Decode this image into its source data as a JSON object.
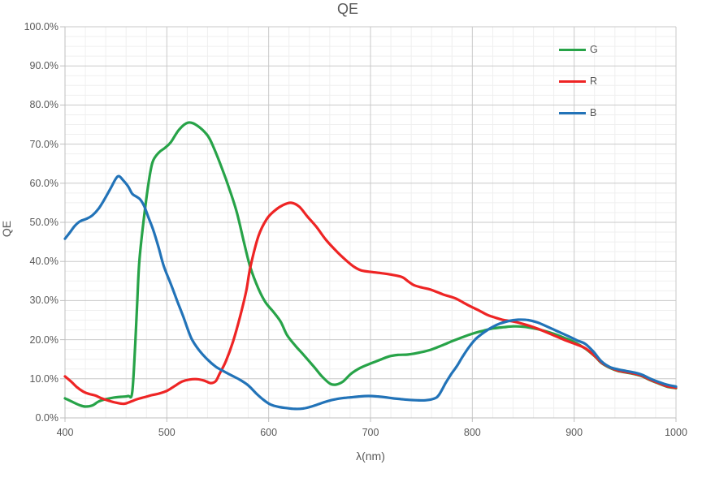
{
  "title": "QE",
  "palette": {
    "grid_major": "#c9c9c9",
    "grid_minor": "#efefef",
    "axis_line": "#bfbfbf",
    "text": "#595959"
  },
  "chart_data": {
    "type": "line",
    "title": "QE",
    "xlabel": "λ(nm)",
    "ylabel": "QE",
    "xlim": [
      400,
      1000
    ],
    "ylim": [
      0,
      100
    ],
    "x_major_step": 100,
    "x_minor_step": 20,
    "y_major_step": 10,
    "y_minor_step": 2.5,
    "y_unit": "percent",
    "grid": "major and minor, both axes",
    "legend_position": "inside top-right",
    "x_tick_labels": [
      "400",
      "500",
      "600",
      "700",
      "800",
      "900",
      "1000"
    ],
    "y_tick_labels": [
      "100.0%",
      "90.0%",
      "80.0%",
      "70.0%",
      "60.0%",
      "50.0%",
      "40.0%",
      "30.0%",
      "20.0%",
      "10.0%",
      "0.0%"
    ],
    "series": [
      {
        "name": "G",
        "color": "#27a348",
        "points": [
          [
            400,
            5.0
          ],
          [
            408,
            4.0
          ],
          [
            415,
            3.2
          ],
          [
            420,
            2.9
          ],
          [
            427,
            3.2
          ],
          [
            433,
            4.2
          ],
          [
            440,
            4.8
          ],
          [
            448,
            5.2
          ],
          [
            455,
            5.4
          ],
          [
            462,
            5.6
          ],
          [
            466,
            6.5
          ],
          [
            469,
            19.0
          ],
          [
            471,
            30.0
          ],
          [
            473,
            40.0
          ],
          [
            477,
            50.0
          ],
          [
            482,
            60.0
          ],
          [
            486,
            65.4
          ],
          [
            492,
            67.8
          ],
          [
            498,
            69.0
          ],
          [
            504,
            70.5
          ],
          [
            512,
            73.7
          ],
          [
            521,
            75.5
          ],
          [
            530,
            74.7
          ],
          [
            540,
            72.2
          ],
          [
            546,
            69.1
          ],
          [
            554,
            63.9
          ],
          [
            562,
            58.1
          ],
          [
            569,
            52.3
          ],
          [
            576,
            44.6
          ],
          [
            582,
            38.5
          ],
          [
            590,
            33.0
          ],
          [
            597,
            29.5
          ],
          [
            605,
            27.0
          ],
          [
            612,
            24.5
          ],
          [
            618,
            21.2
          ],
          [
            626,
            18.5
          ],
          [
            634,
            16.2
          ],
          [
            645,
            12.9
          ],
          [
            652,
            10.7
          ],
          [
            660,
            8.8
          ],
          [
            666,
            8.5
          ],
          [
            673,
            9.3
          ],
          [
            681,
            11.3
          ],
          [
            690,
            12.8
          ],
          [
            699,
            13.8
          ],
          [
            708,
            14.7
          ],
          [
            718,
            15.7
          ],
          [
            727,
            16.1
          ],
          [
            737,
            16.2
          ],
          [
            748,
            16.7
          ],
          [
            759,
            17.4
          ],
          [
            770,
            18.5
          ],
          [
            780,
            19.6
          ],
          [
            791,
            20.7
          ],
          [
            801,
            21.6
          ],
          [
            811,
            22.3
          ],
          [
            821,
            22.9
          ],
          [
            831,
            23.2
          ],
          [
            840,
            23.4
          ],
          [
            850,
            23.3
          ],
          [
            860,
            22.9
          ],
          [
            870,
            22.3
          ],
          [
            880,
            21.5
          ],
          [
            890,
            20.5
          ],
          [
            900,
            19.4
          ],
          [
            911,
            17.7
          ],
          [
            920,
            15.8
          ],
          [
            927,
            14.0
          ],
          [
            935,
            12.8
          ],
          [
            943,
            12.0
          ],
          [
            951,
            11.6
          ],
          [
            959,
            11.2
          ],
          [
            967,
            10.6
          ],
          [
            975,
            9.6
          ],
          [
            983,
            8.8
          ],
          [
            991,
            8.0
          ],
          [
            1000,
            7.6
          ]
        ]
      },
      {
        "name": "R",
        "color": "#ee2424",
        "points": [
          [
            400,
            10.6
          ],
          [
            406,
            9.3
          ],
          [
            412,
            7.8
          ],
          [
            418,
            6.7
          ],
          [
            424,
            6.1
          ],
          [
            430,
            5.7
          ],
          [
            436,
            5.0
          ],
          [
            443,
            4.4
          ],
          [
            450,
            3.9
          ],
          [
            458,
            3.6
          ],
          [
            464,
            4.1
          ],
          [
            471,
            4.8
          ],
          [
            478,
            5.3
          ],
          [
            485,
            5.8
          ],
          [
            492,
            6.2
          ],
          [
            500,
            6.9
          ],
          [
            508,
            8.2
          ],
          [
            515,
            9.3
          ],
          [
            522,
            9.8
          ],
          [
            530,
            9.9
          ],
          [
            537,
            9.5
          ],
          [
            543,
            8.9
          ],
          [
            548,
            9.4
          ],
          [
            552,
            11.4
          ],
          [
            558,
            14.5
          ],
          [
            565,
            19.5
          ],
          [
            572,
            26.0
          ],
          [
            578,
            32.5
          ],
          [
            582,
            38.5
          ],
          [
            590,
            46.5
          ],
          [
            598,
            50.8
          ],
          [
            606,
            53.0
          ],
          [
            614,
            54.4
          ],
          [
            622,
            55.0
          ],
          [
            630,
            54.0
          ],
          [
            638,
            51.5
          ],
          [
            647,
            48.8
          ],
          [
            656,
            45.6
          ],
          [
            667,
            42.5
          ],
          [
            676,
            40.3
          ],
          [
            684,
            38.6
          ],
          [
            691,
            37.7
          ],
          [
            701,
            37.3
          ],
          [
            711,
            37.0
          ],
          [
            721,
            36.6
          ],
          [
            731,
            36.0
          ],
          [
            737,
            34.9
          ],
          [
            743,
            33.9
          ],
          [
            751,
            33.3
          ],
          [
            759,
            32.8
          ],
          [
            771,
            31.6
          ],
          [
            783,
            30.6
          ],
          [
            791,
            29.5
          ],
          [
            799,
            28.4
          ],
          [
            807,
            27.4
          ],
          [
            815,
            26.3
          ],
          [
            823,
            25.6
          ],
          [
            831,
            25.0
          ],
          [
            841,
            24.6
          ],
          [
            850,
            24.0
          ],
          [
            860,
            23.2
          ],
          [
            870,
            22.2
          ],
          [
            880,
            21.1
          ],
          [
            890,
            20.0
          ],
          [
            900,
            19.0
          ],
          [
            911,
            17.8
          ],
          [
            920,
            15.9
          ],
          [
            927,
            14.1
          ],
          [
            935,
            12.9
          ],
          [
            943,
            12.1
          ],
          [
            951,
            11.7
          ],
          [
            959,
            11.3
          ],
          [
            967,
            10.7
          ],
          [
            975,
            9.7
          ],
          [
            983,
            8.9
          ],
          [
            991,
            8.1
          ],
          [
            1000,
            7.7
          ]
        ]
      },
      {
        "name": "B",
        "color": "#2273b8",
        "points": [
          [
            400,
            45.8
          ],
          [
            405,
            47.5
          ],
          [
            410,
            49.2
          ],
          [
            415,
            50.3
          ],
          [
            421,
            50.9
          ],
          [
            427,
            51.8
          ],
          [
            433,
            53.5
          ],
          [
            439,
            56.0
          ],
          [
            445,
            58.8
          ],
          [
            450,
            61.2
          ],
          [
            453,
            61.8
          ],
          [
            457,
            60.8
          ],
          [
            462,
            59.2
          ],
          [
            466,
            57.3
          ],
          [
            470,
            56.6
          ],
          [
            474,
            55.8
          ],
          [
            478,
            54.0
          ],
          [
            482,
            51.2
          ],
          [
            487,
            47.8
          ],
          [
            492,
            43.5
          ],
          [
            497,
            38.8
          ],
          [
            504,
            34.2
          ],
          [
            510,
            30.0
          ],
          [
            516,
            26.0
          ],
          [
            524,
            20.4
          ],
          [
            532,
            17.2
          ],
          [
            540,
            14.9
          ],
          [
            548,
            13.1
          ],
          [
            556,
            11.9
          ],
          [
            564,
            10.8
          ],
          [
            572,
            9.7
          ],
          [
            580,
            8.3
          ],
          [
            588,
            6.2
          ],
          [
            595,
            4.6
          ],
          [
            602,
            3.4
          ],
          [
            610,
            2.8
          ],
          [
            618,
            2.5
          ],
          [
            626,
            2.3
          ],
          [
            634,
            2.4
          ],
          [
            642,
            2.9
          ],
          [
            650,
            3.6
          ],
          [
            658,
            4.3
          ],
          [
            666,
            4.8
          ],
          [
            674,
            5.1
          ],
          [
            682,
            5.3
          ],
          [
            690,
            5.5
          ],
          [
            698,
            5.6
          ],
          [
            706,
            5.5
          ],
          [
            714,
            5.3
          ],
          [
            722,
            5.0
          ],
          [
            730,
            4.8
          ],
          [
            738,
            4.6
          ],
          [
            746,
            4.5
          ],
          [
            754,
            4.5
          ],
          [
            762,
            4.9
          ],
          [
            767,
            5.8
          ],
          [
            774,
            9.0
          ],
          [
            779,
            11.1
          ],
          [
            785,
            13.3
          ],
          [
            791,
            15.9
          ],
          [
            797,
            18.2
          ],
          [
            803,
            20.1
          ],
          [
            809,
            21.4
          ],
          [
            815,
            22.5
          ],
          [
            821,
            23.4
          ],
          [
            827,
            24.1
          ],
          [
            836,
            24.8
          ],
          [
            845,
            25.1
          ],
          [
            855,
            25.0
          ],
          [
            864,
            24.4
          ],
          [
            873,
            23.4
          ],
          [
            884,
            22.1
          ],
          [
            895,
            20.8
          ],
          [
            903,
            19.8
          ],
          [
            911,
            18.9
          ],
          [
            919,
            16.9
          ],
          [
            927,
            14.4
          ],
          [
            935,
            13.0
          ],
          [
            943,
            12.4
          ],
          [
            951,
            12.0
          ],
          [
            959,
            11.6
          ],
          [
            967,
            11.0
          ],
          [
            975,
            10.0
          ],
          [
            983,
            9.2
          ],
          [
            991,
            8.5
          ],
          [
            1000,
            8.0
          ]
        ]
      }
    ]
  }
}
